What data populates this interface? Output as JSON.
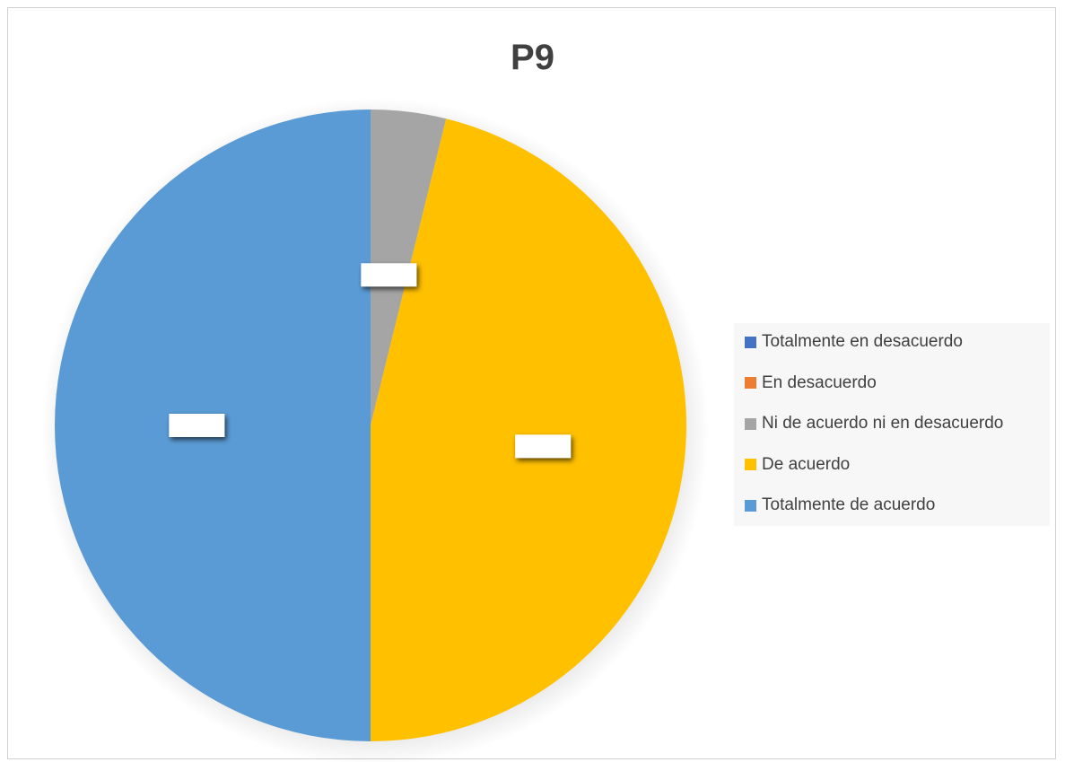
{
  "chart_data": {
    "type": "pie",
    "title": "P9",
    "start_angle_deg": 0,
    "direction": "clockwise",
    "slices": [
      {
        "label": "Totalmente en desacuerdo",
        "value": 0,
        "color": "#4472c4"
      },
      {
        "label": "En desacuerdo",
        "value": 0,
        "color": "#ed7d31"
      },
      {
        "label": "Ni de acuerdo ni en desacuerdo",
        "value": 1,
        "color": "#a5a5a5"
      },
      {
        "label": "De acuerdo",
        "value": 12,
        "color": "#ffc000"
      },
      {
        "label": "Totalmente de acuerdo",
        "value": 13,
        "color": "#5b9bd5"
      }
    ],
    "legend_position": "right"
  }
}
